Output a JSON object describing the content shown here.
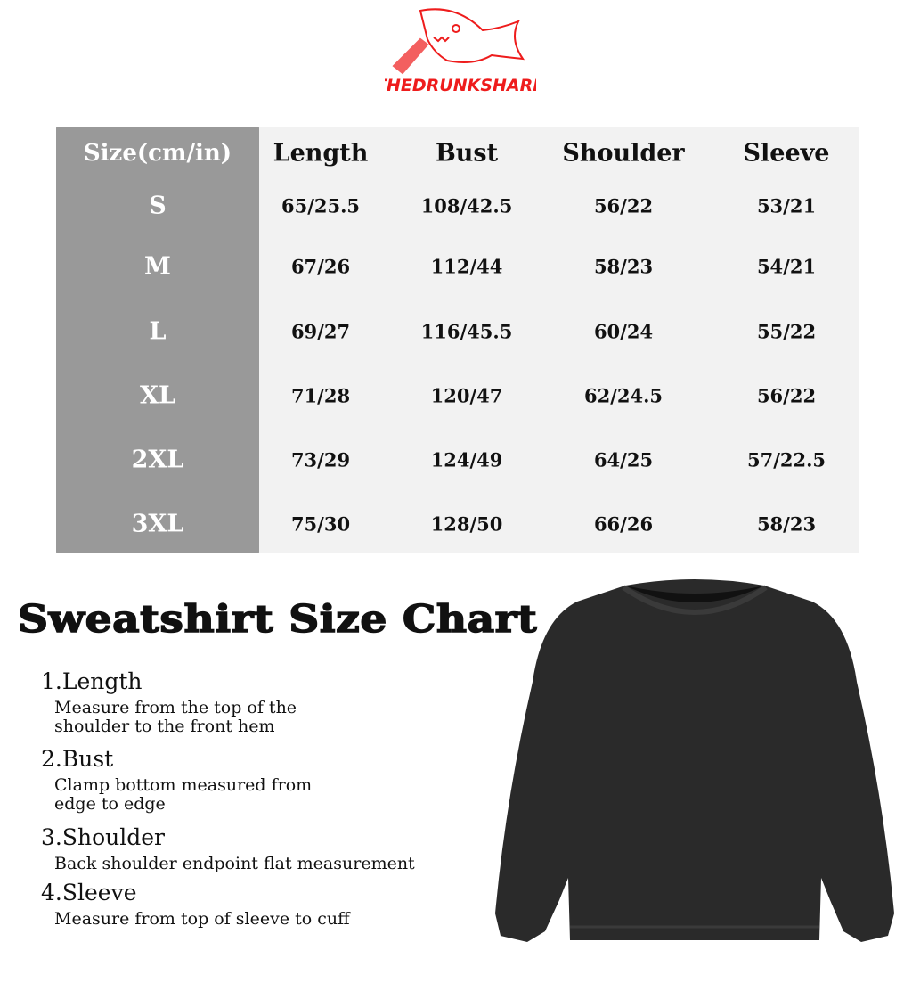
{
  "brand": {
    "logo_text": "THEDRUNKSHARK",
    "color": "#ee1c1c"
  },
  "table": {
    "headers": [
      "Size(cm/in)",
      "Length",
      "Bust",
      "Shoulder",
      "Sleeve"
    ],
    "rows": [
      {
        "size": "S",
        "length": "65/25.5",
        "bust": "108/42.5",
        "shoulder": "56/22",
        "sleeve": "53/21"
      },
      {
        "size": "M",
        "length": "67/26",
        "bust": "112/44",
        "shoulder": "58/23",
        "sleeve": "54/21"
      },
      {
        "size": "L",
        "length": "69/27",
        "bust": "116/45.5",
        "shoulder": "60/24",
        "sleeve": "55/22"
      },
      {
        "size": "XL",
        "length": "71/28",
        "bust": "120/47",
        "shoulder": "62/24.5",
        "sleeve": "56/22"
      },
      {
        "size": "2XL",
        "length": "73/29",
        "bust": "124/49",
        "shoulder": "64/25",
        "sleeve": "57/22.5"
      },
      {
        "size": "3XL",
        "length": "75/30",
        "bust": "128/50",
        "shoulder": "66/26",
        "sleeve": "58/23"
      }
    ]
  },
  "title": "Sweatshirt Size Chart",
  "measurements": [
    {
      "heading": "1.Length",
      "lines": [
        "Measure from the top of the",
        "shoulder to the front hem"
      ]
    },
    {
      "heading": "2.Bust",
      "lines": [
        "Clamp bottom measured from",
        "edge to edge"
      ]
    },
    {
      "heading": "3.Shoulder",
      "lines": [
        "Back shoulder endpoint flat measurement"
      ]
    },
    {
      "heading": "4.Sleeve",
      "lines": [
        "Measure from top of sleeve to cuff"
      ]
    }
  ]
}
